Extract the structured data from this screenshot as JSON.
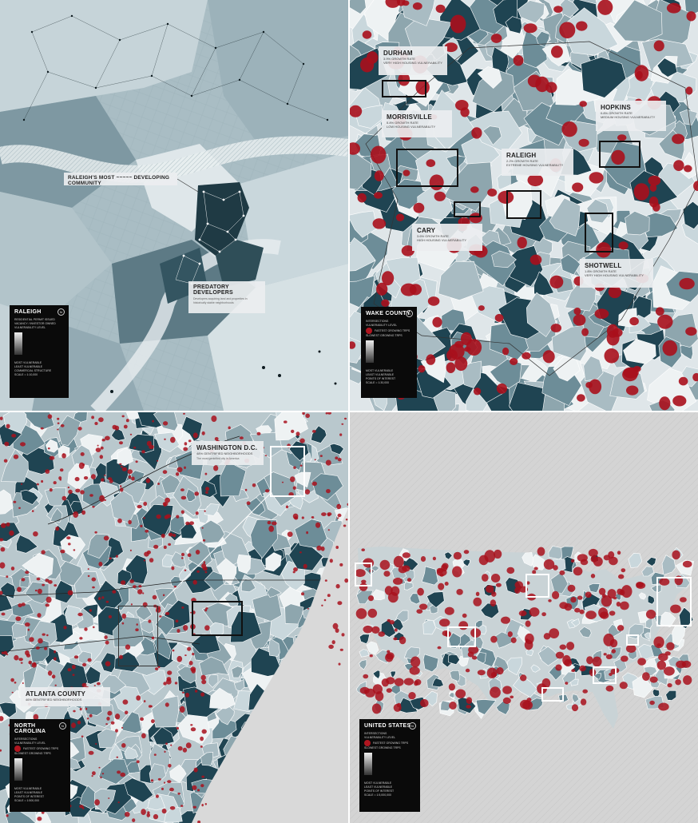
{
  "colors": {
    "dark": "#1f4452",
    "mid": "#6d8d98",
    "light": "#c9d7dc",
    "pale": "#eef2f3",
    "red": "#a8101c",
    "gray_bg": "#d4d4d4"
  },
  "panel_raleigh": {
    "callout_main": "RALEIGH'S MOST ~~~~~ DEVELOPING COMMUNITY",
    "callout_predatory": {
      "title": "PREDATORY DEVELOPERS",
      "body": "Developers acquiring land and properties in historically stable neighborhoods"
    },
    "legend": {
      "title": "RALEIGH",
      "items": [
        "RESIDENTIAL PERMIT ISSUED",
        "VACANCY / INVESTOR OWNED",
        "VULNERABILITY LEVEL",
        "MOST VULNERABLE",
        "LEAST VULNERABLE",
        "COMMERCIAL STRUCTURE",
        "SCALE = 1:10,000"
      ]
    }
  },
  "panel_wake": {
    "callouts": [
      {
        "title": "DURHAM",
        "line1": "3.9% GROWTH RATE",
        "line2": "VERY HIGH HOUSING VULNERABILITY"
      },
      {
        "title": "MORRISVILLE",
        "line1": "5.8% GROWTH RATE",
        "line2": "LOW HOUSING VULNERABILITY"
      },
      {
        "title": "HOPKINS",
        "line1": "0.8% GROWTH RATE",
        "line2": "MEDIUM HOUSING VULNERABILITY"
      },
      {
        "title": "RALEIGH",
        "line1": "2.2% GROWTH RATE",
        "line2": "EXTREME HOUSING VULNERABILITY"
      },
      {
        "title": "CARY",
        "line1": "3.6% GROWTH RATE",
        "line2": "HIGH HOUSING VULNERABILITY"
      },
      {
        "title": "SHOTWELL",
        "line1": "1.8% GROWTH RATE",
        "line2": "VERY HIGH HOUSING VULNERABILITY"
      }
    ],
    "legend": {
      "title": "WAKE COUNTY",
      "items": [
        "INTERSECTIONS",
        "VULNERABILITY LEVEL",
        "FASTEST GROWING TRPS",
        "SLOWEST GROWING TRPS",
        "MOST VULNERABLE",
        "LEAST VULNERABLE",
        "POINTS OF INTEREST",
        "SCALE = 1:30,000"
      ]
    }
  },
  "panel_nc": {
    "callouts": [
      {
        "title": "WASHINGTON D.C.",
        "line1": "48% GENTRIFIED NEIGHBORHOODS",
        "line2": "The most gentrified city in America"
      },
      {
        "title": "ATLANTA COUNTY",
        "line1": "46% GENTRIFIED NEIGHBORHOODS",
        "line2": ""
      }
    ],
    "legend": {
      "title": "NORTH CAROLINA",
      "items": [
        "INTERSECTIONS",
        "VULNERABILITY LEVEL",
        "FASTEST GROWING TRPS",
        "SLOWEST GROWING TRPS",
        "MOST VULNERABLE",
        "LEAST VULNERABLE",
        "POINTS OF INTEREST",
        "SCALE = 1:500,000"
      ]
    }
  },
  "panel_us": {
    "legend": {
      "title": "UNITED STATES",
      "items": [
        "INTERSECTIONS",
        "VULNERABILITY LEVEL",
        "FASTEST GROWING TRPS",
        "SLOWEST GROWING TRPS",
        "MOST VULNERABLE",
        "LEAST VULNERABLE",
        "POINTS OF INTEREST",
        "SCALE = 1:5,000,000"
      ]
    }
  }
}
